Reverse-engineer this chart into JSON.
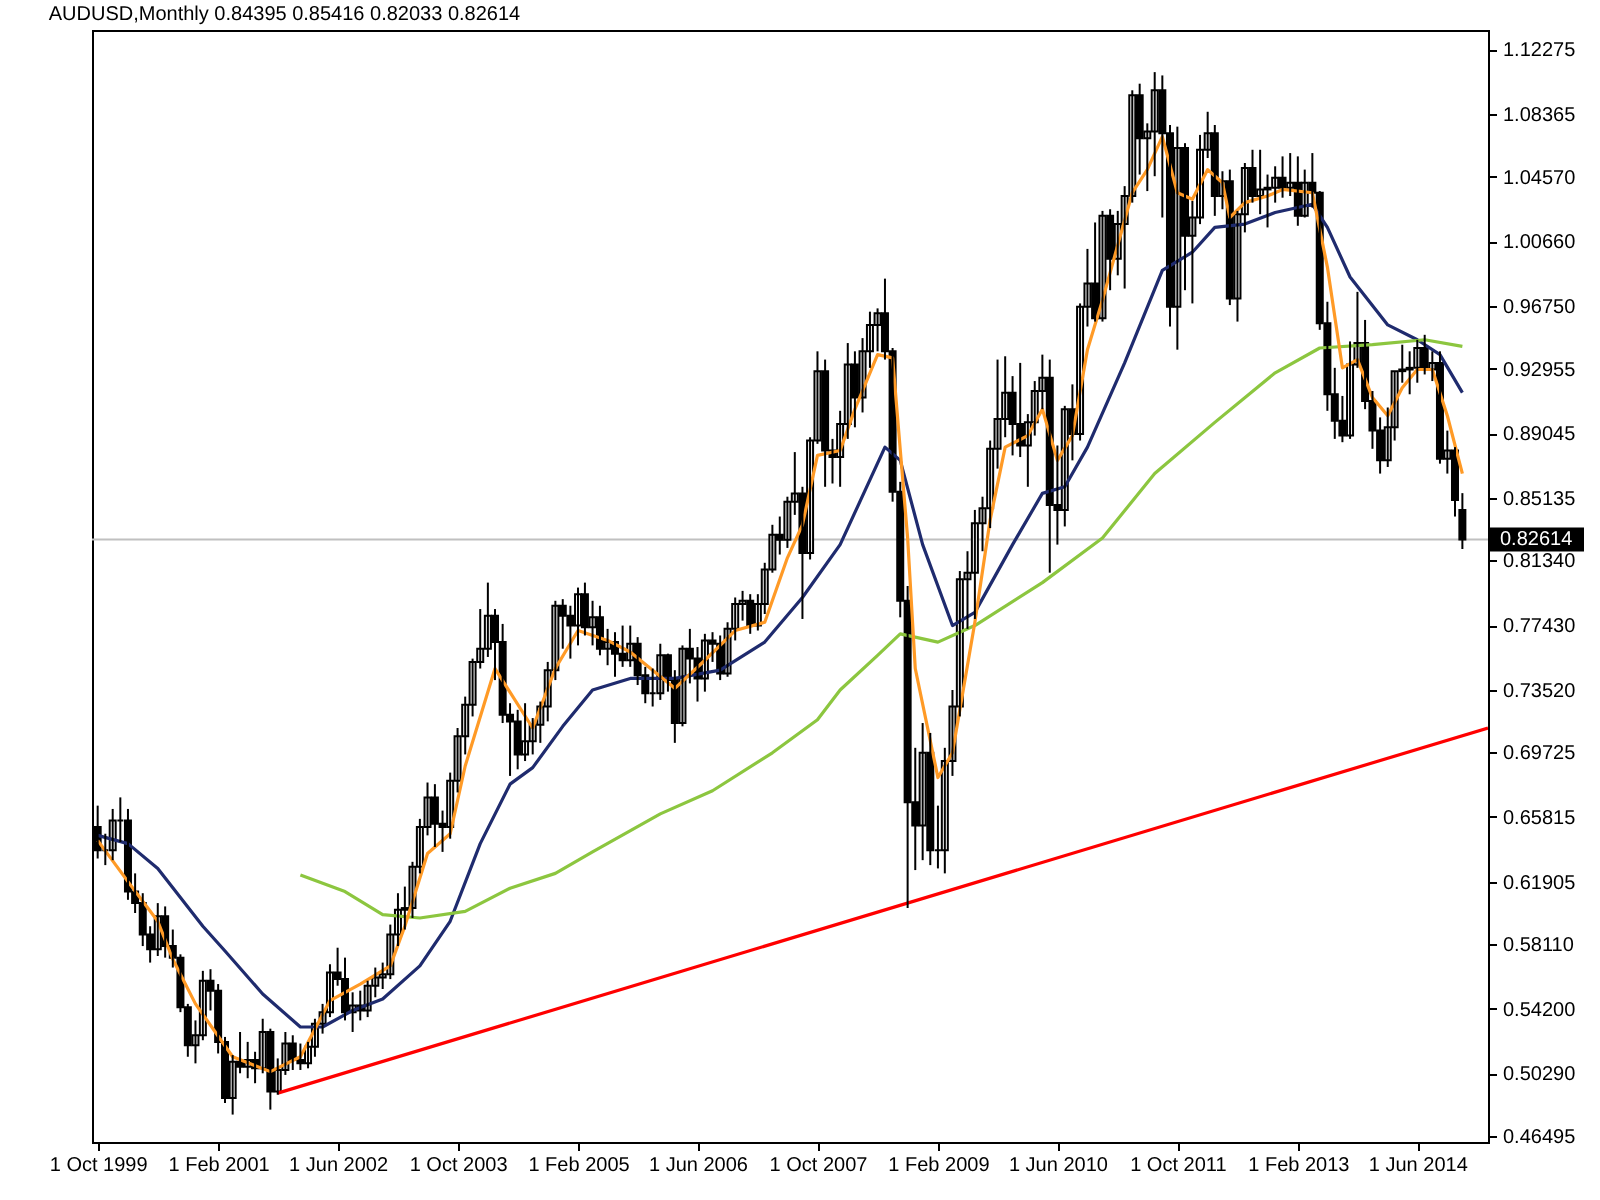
{
  "chart_data": {
    "type": "candlestick",
    "title": "AUDUSD,Monthly  0.84395 0.85416 0.82033 0.82614",
    "x": [
      "1999-10",
      "1999-11",
      "1999-12",
      "2000-01",
      "2000-02",
      "2000-03",
      "2000-04",
      "2000-05",
      "2000-06",
      "2000-07",
      "2000-08",
      "2000-09",
      "2000-10",
      "2000-11",
      "2000-12",
      "2001-01",
      "2001-02",
      "2001-03",
      "2001-04",
      "2001-05",
      "2001-06",
      "2001-07",
      "2001-08",
      "2001-09",
      "2001-10",
      "2001-11",
      "2001-12",
      "2002-01",
      "2002-02",
      "2002-03",
      "2002-04",
      "2002-05",
      "2002-06",
      "2002-07",
      "2002-08",
      "2002-09",
      "2002-10",
      "2002-11",
      "2002-12",
      "2003-01",
      "2003-02",
      "2003-03",
      "2003-04",
      "2003-05",
      "2003-06",
      "2003-07",
      "2003-08",
      "2003-09",
      "2003-10",
      "2003-11",
      "2003-12",
      "2004-01",
      "2004-02",
      "2004-03",
      "2004-04",
      "2004-05",
      "2004-06",
      "2004-07",
      "2004-08",
      "2004-09",
      "2004-10",
      "2004-11",
      "2004-12",
      "2005-01",
      "2005-02",
      "2005-03",
      "2005-04",
      "2005-05",
      "2005-06",
      "2005-07",
      "2005-08",
      "2005-09",
      "2005-10",
      "2005-11",
      "2005-12",
      "2006-01",
      "2006-02",
      "2006-03",
      "2006-04",
      "2006-05",
      "2006-06",
      "2006-07",
      "2006-08",
      "2006-09",
      "2006-10",
      "2006-11",
      "2006-12",
      "2007-01",
      "2007-02",
      "2007-03",
      "2007-04",
      "2007-05",
      "2007-06",
      "2007-07",
      "2007-08",
      "2007-09",
      "2007-10",
      "2007-11",
      "2007-12",
      "2008-01",
      "2008-02",
      "2008-03",
      "2008-04",
      "2008-05",
      "2008-06",
      "2008-07",
      "2008-08",
      "2008-09",
      "2008-10",
      "2008-11",
      "2008-12",
      "2009-01",
      "2009-02",
      "2009-03",
      "2009-04",
      "2009-05",
      "2009-06",
      "2009-07",
      "2009-08",
      "2009-09",
      "2009-10",
      "2009-11",
      "2009-12",
      "2010-01",
      "2010-02",
      "2010-03",
      "2010-04",
      "2010-05",
      "2010-06",
      "2010-07",
      "2010-08",
      "2010-09",
      "2010-10",
      "2010-11",
      "2010-12",
      "2011-01",
      "2011-02",
      "2011-03",
      "2011-04",
      "2011-05",
      "2011-06",
      "2011-07",
      "2011-08",
      "2011-09",
      "2011-10",
      "2011-11",
      "2011-12",
      "2012-01",
      "2012-02",
      "2012-03",
      "2012-04",
      "2012-05",
      "2012-06",
      "2012-07",
      "2012-08",
      "2012-09",
      "2012-10",
      "2012-11",
      "2012-12",
      "2013-01",
      "2013-02",
      "2013-03",
      "2013-04",
      "2013-05",
      "2013-06",
      "2013-07",
      "2013-08",
      "2013-09",
      "2013-10",
      "2013-11",
      "2013-12",
      "2014-01",
      "2014-02",
      "2014-03",
      "2014-04",
      "2014-05",
      "2014-06",
      "2014-07",
      "2014-08",
      "2014-09",
      "2014-10",
      "2014-11",
      "2014-12"
    ],
    "ohlc": [
      [
        0.652,
        0.665,
        0.633,
        0.638
      ],
      [
        0.638,
        0.648,
        0.629,
        0.638
      ],
      [
        0.638,
        0.663,
        0.632,
        0.656
      ],
      [
        0.656,
        0.67,
        0.643,
        0.656
      ],
      [
        0.656,
        0.663,
        0.608,
        0.613
      ],
      [
        0.613,
        0.624,
        0.6,
        0.606
      ],
      [
        0.606,
        0.612,
        0.58,
        0.587
      ],
      [
        0.587,
        0.592,
        0.57,
        0.578
      ],
      [
        0.578,
        0.606,
        0.574,
        0.598
      ],
      [
        0.598,
        0.604,
        0.573,
        0.58
      ],
      [
        0.58,
        0.59,
        0.567,
        0.573
      ],
      [
        0.573,
        0.575,
        0.54,
        0.543
      ],
      [
        0.543,
        0.545,
        0.513,
        0.52
      ],
      [
        0.52,
        0.535,
        0.509,
        0.526
      ],
      [
        0.526,
        0.565,
        0.523,
        0.559
      ],
      [
        0.559,
        0.566,
        0.541,
        0.553
      ],
      [
        0.553,
        0.557,
        0.515,
        0.522
      ],
      [
        0.522,
        0.525,
        0.485,
        0.488
      ],
      [
        0.488,
        0.514,
        0.478,
        0.51
      ],
      [
        0.51,
        0.528,
        0.503,
        0.507
      ],
      [
        0.507,
        0.522,
        0.5,
        0.511
      ],
      [
        0.511,
        0.516,
        0.497,
        0.506
      ],
      [
        0.506,
        0.536,
        0.503,
        0.528
      ],
      [
        0.528,
        0.53,
        0.481,
        0.492
      ],
      [
        0.492,
        0.512,
        0.49,
        0.505
      ],
      [
        0.505,
        0.528,
        0.502,
        0.521
      ],
      [
        0.521,
        0.526,
        0.505,
        0.511
      ],
      [
        0.511,
        0.521,
        0.505,
        0.509
      ],
      [
        0.509,
        0.522,
        0.506,
        0.519
      ],
      [
        0.519,
        0.536,
        0.513,
        0.533
      ],
      [
        0.533,
        0.545,
        0.527,
        0.54
      ],
      [
        0.54,
        0.569,
        0.537,
        0.564
      ],
      [
        0.564,
        0.579,
        0.556,
        0.56
      ],
      [
        0.56,
        0.573,
        0.535,
        0.54
      ],
      [
        0.54,
        0.552,
        0.528,
        0.544
      ],
      [
        0.544,
        0.553,
        0.535,
        0.541
      ],
      [
        0.541,
        0.559,
        0.537,
        0.556
      ],
      [
        0.556,
        0.567,
        0.549,
        0.561
      ],
      [
        0.561,
        0.57,
        0.554,
        0.563
      ],
      [
        0.563,
        0.593,
        0.56,
        0.587
      ],
      [
        0.587,
        0.612,
        0.58,
        0.602
      ],
      [
        0.602,
        0.616,
        0.59,
        0.603
      ],
      [
        0.603,
        0.631,
        0.597,
        0.628
      ],
      [
        0.628,
        0.657,
        0.624,
        0.652
      ],
      [
        0.652,
        0.679,
        0.647,
        0.67
      ],
      [
        0.67,
        0.678,
        0.64,
        0.654
      ],
      [
        0.654,
        0.662,
        0.637,
        0.652
      ],
      [
        0.652,
        0.685,
        0.645,
        0.68
      ],
      [
        0.68,
        0.712,
        0.673,
        0.707
      ],
      [
        0.707,
        0.731,
        0.696,
        0.726
      ],
      [
        0.726,
        0.754,
        0.719,
        0.752
      ],
      [
        0.752,
        0.784,
        0.748,
        0.76
      ],
      [
        0.76,
        0.8,
        0.755,
        0.78
      ],
      [
        0.78,
        0.784,
        0.741,
        0.764
      ],
      [
        0.764,
        0.775,
        0.715,
        0.72
      ],
      [
        0.72,
        0.727,
        0.683,
        0.716
      ],
      [
        0.716,
        0.723,
        0.687,
        0.696
      ],
      [
        0.696,
        0.727,
        0.692,
        0.704
      ],
      [
        0.704,
        0.718,
        0.696,
        0.714
      ],
      [
        0.714,
        0.728,
        0.703,
        0.725
      ],
      [
        0.725,
        0.752,
        0.716,
        0.747
      ],
      [
        0.747,
        0.789,
        0.741,
        0.786
      ],
      [
        0.786,
        0.79,
        0.76,
        0.78
      ],
      [
        0.78,
        0.786,
        0.754,
        0.774
      ],
      [
        0.774,
        0.797,
        0.762,
        0.793
      ],
      [
        0.793,
        0.8,
        0.768,
        0.773
      ],
      [
        0.773,
        0.789,
        0.762,
        0.779
      ],
      [
        0.779,
        0.786,
        0.756,
        0.76
      ],
      [
        0.76,
        0.772,
        0.75,
        0.764
      ],
      [
        0.764,
        0.77,
        0.743,
        0.757
      ],
      [
        0.757,
        0.774,
        0.749,
        0.753
      ],
      [
        0.753,
        0.774,
        0.749,
        0.763
      ],
      [
        0.763,
        0.767,
        0.738,
        0.744
      ],
      [
        0.744,
        0.749,
        0.727,
        0.733
      ],
      [
        0.733,
        0.748,
        0.725,
        0.733
      ],
      [
        0.733,
        0.763,
        0.729,
        0.756
      ],
      [
        0.756,
        0.757,
        0.734,
        0.741
      ],
      [
        0.741,
        0.747,
        0.703,
        0.715
      ],
      [
        0.715,
        0.762,
        0.713,
        0.76
      ],
      [
        0.76,
        0.772,
        0.739,
        0.754
      ],
      [
        0.754,
        0.761,
        0.728,
        0.742
      ],
      [
        0.742,
        0.769,
        0.734,
        0.765
      ],
      [
        0.765,
        0.77,
        0.752,
        0.763
      ],
      [
        0.763,
        0.768,
        0.741,
        0.745
      ],
      [
        0.745,
        0.776,
        0.743,
        0.772
      ],
      [
        0.772,
        0.791,
        0.765,
        0.787
      ],
      [
        0.787,
        0.795,
        0.777,
        0.789
      ],
      [
        0.789,
        0.793,
        0.769,
        0.774
      ],
      [
        0.774,
        0.793,
        0.771,
        0.787
      ],
      [
        0.787,
        0.812,
        0.781,
        0.808
      ],
      [
        0.808,
        0.835,
        0.806,
        0.829
      ],
      [
        0.829,
        0.84,
        0.817,
        0.826
      ],
      [
        0.826,
        0.852,
        0.821,
        0.849
      ],
      [
        0.849,
        0.879,
        0.841,
        0.854
      ],
      [
        0.854,
        0.858,
        0.778,
        0.818
      ],
      [
        0.818,
        0.888,
        0.814,
        0.886
      ],
      [
        0.886,
        0.94,
        0.884,
        0.928
      ],
      [
        0.928,
        0.935,
        0.858,
        0.88
      ],
      [
        0.88,
        0.887,
        0.86,
        0.876
      ],
      [
        0.876,
        0.904,
        0.858,
        0.896
      ],
      [
        0.896,
        0.945,
        0.887,
        0.932
      ],
      [
        0.932,
        0.94,
        0.894,
        0.912
      ],
      [
        0.912,
        0.948,
        0.903,
        0.94
      ],
      [
        0.94,
        0.964,
        0.93,
        0.956
      ],
      [
        0.956,
        0.966,
        0.94,
        0.963
      ],
      [
        0.963,
        0.984,
        0.935,
        0.94
      ],
      [
        0.94,
        0.942,
        0.849,
        0.855
      ],
      [
        0.855,
        0.861,
        0.779,
        0.789
      ],
      [
        0.789,
        0.798,
        0.603,
        0.667
      ],
      [
        0.667,
        0.7,
        0.626,
        0.653
      ],
      [
        0.653,
        0.715,
        0.632,
        0.697
      ],
      [
        0.697,
        0.709,
        0.629,
        0.638
      ],
      [
        0.638,
        0.665,
        0.627,
        0.638
      ],
      [
        0.638,
        0.7,
        0.624,
        0.692
      ],
      [
        0.692,
        0.735,
        0.683,
        0.725
      ],
      [
        0.725,
        0.807,
        0.719,
        0.802
      ],
      [
        0.802,
        0.819,
        0.772,
        0.806
      ],
      [
        0.806,
        0.844,
        0.778,
        0.836
      ],
      [
        0.836,
        0.852,
        0.819,
        0.845
      ],
      [
        0.845,
        0.886,
        0.833,
        0.881
      ],
      [
        0.881,
        0.935,
        0.869,
        0.899
      ],
      [
        0.899,
        0.937,
        0.888,
        0.915
      ],
      [
        0.915,
        0.925,
        0.877,
        0.896
      ],
      [
        0.896,
        0.933,
        0.876,
        0.883
      ],
      [
        0.883,
        0.902,
        0.858,
        0.897
      ],
      [
        0.897,
        0.922,
        0.889,
        0.916
      ],
      [
        0.916,
        0.938,
        0.905,
        0.924
      ],
      [
        0.924,
        0.935,
        0.806,
        0.847
      ],
      [
        0.847,
        0.883,
        0.823,
        0.844
      ],
      [
        0.844,
        0.907,
        0.834,
        0.905
      ],
      [
        0.905,
        0.92,
        0.874,
        0.89
      ],
      [
        0.89,
        0.969,
        0.886,
        0.967
      ],
      [
        0.967,
        1.002,
        0.955,
        0.981
      ],
      [
        0.981,
        1.018,
        0.958,
        0.96
      ],
      [
        0.96,
        1.025,
        0.958,
        1.022
      ],
      [
        1.022,
        1.026,
        0.977,
        0.996
      ],
      [
        0.996,
        1.025,
        0.986,
        1.017
      ],
      [
        1.017,
        1.04,
        0.978,
        1.034
      ],
      [
        1.034,
        1.098,
        1.03,
        1.095
      ],
      [
        1.095,
        1.102,
        1.047,
        1.069
      ],
      [
        1.069,
        1.078,
        1.037,
        1.073
      ],
      [
        1.073,
        1.109,
        1.046,
        1.098
      ],
      [
        1.098,
        1.107,
        1.021,
        1.072
      ],
      [
        1.072,
        1.077,
        0.955,
        0.967
      ],
      [
        0.967,
        1.076,
        0.941,
        1.063
      ],
      [
        1.063,
        1.066,
        0.977,
        1.01
      ],
      [
        1.01,
        1.031,
        0.969,
        1.021
      ],
      [
        1.021,
        1.071,
        1.017,
        1.062
      ],
      [
        1.062,
        1.085,
        1.057,
        1.072
      ],
      [
        1.072,
        1.077,
        1.022,
        1.034
      ],
      [
        1.034,
        1.049,
        1.026,
        1.043
      ],
      [
        1.043,
        1.05,
        0.968,
        0.972
      ],
      [
        0.972,
        1.025,
        0.958,
        1.023
      ],
      [
        1.023,
        1.054,
        1.012,
        1.051
      ],
      [
        1.051,
        1.062,
        1.03,
        1.034
      ],
      [
        1.034,
        1.062,
        1.023,
        1.038
      ],
      [
        1.038,
        1.047,
        1.015,
        1.039
      ],
      [
        1.039,
        1.052,
        1.03,
        1.045
      ],
      [
        1.045,
        1.058,
        1.033,
        1.039
      ],
      [
        1.039,
        1.06,
        1.034,
        1.042
      ],
      [
        1.042,
        1.058,
        1.016,
        1.022
      ],
      [
        1.022,
        1.05,
        1.021,
        1.042
      ],
      [
        1.042,
        1.06,
        1.027,
        1.036
      ],
      [
        1.036,
        1.037,
        0.953,
        0.957
      ],
      [
        0.957,
        0.97,
        0.904,
        0.914
      ],
      [
        0.914,
        0.93,
        0.887,
        0.898
      ],
      [
        0.898,
        0.913,
        0.885,
        0.889
      ],
      [
        0.889,
        0.946,
        0.887,
        0.932
      ],
      [
        0.932,
        0.976,
        0.93,
        0.945
      ],
      [
        0.945,
        0.959,
        0.905,
        0.91
      ],
      [
        0.91,
        0.916,
        0.881,
        0.892
      ],
      [
        0.892,
        0.9,
        0.866,
        0.874
      ],
      [
        0.874,
        0.906,
        0.87,
        0.894
      ],
      [
        0.894,
        0.928,
        0.886,
        0.928
      ],
      [
        0.928,
        0.944,
        0.921,
        0.929
      ],
      [
        0.929,
        0.94,
        0.914,
        0.93
      ],
      [
        0.93,
        0.947,
        0.921,
        0.942
      ],
      [
        0.942,
        0.95,
        0.926,
        0.929
      ],
      [
        0.929,
        0.94,
        0.922,
        0.933
      ],
      [
        0.933,
        0.94,
        0.872,
        0.875
      ],
      [
        0.875,
        0.892,
        0.866,
        0.88
      ],
      [
        0.88,
        0.882,
        0.84,
        0.85
      ],
      [
        0.84395,
        0.85416,
        0.82033,
        0.82614
      ]
    ],
    "series": [
      {
        "type": "line",
        "color": "#1f2b6e",
        "x": [
          "1999-10",
          "2000-02",
          "2000-06",
          "2000-12",
          "2001-03",
          "2001-08",
          "2002-01",
          "2002-04",
          "2002-08",
          "2002-12",
          "2003-05",
          "2003-09",
          "2004-01",
          "2004-05",
          "2004-08",
          "2004-12",
          "2005-04",
          "2005-09",
          "2006-03",
          "2006-09",
          "2007-03",
          "2007-08",
          "2008-01",
          "2008-07",
          "2008-09",
          "2008-12",
          "2009-04",
          "2009-07",
          "2009-12",
          "2010-04",
          "2010-07",
          "2010-10",
          "2011-03",
          "2011-08",
          "2011-12",
          "2012-03",
          "2012-07",
          "2012-11",
          "2013-04",
          "2013-06",
          "2013-09",
          "2014-02",
          "2014-06",
          "2014-09",
          "2014-12"
        ],
        "values": [
          0.647,
          0.642,
          0.627,
          0.592,
          0.577,
          0.551,
          0.531,
          0.531,
          0.541,
          0.548,
          0.568,
          0.595,
          0.642,
          0.678,
          0.688,
          0.713,
          0.735,
          0.742,
          0.742,
          0.747,
          0.764,
          0.791,
          0.823,
          0.882,
          0.874,
          0.823,
          0.774,
          0.782,
          0.823,
          0.854,
          0.858,
          0.882,
          0.933,
          0.989,
          1.0,
          1.015,
          1.017,
          1.024,
          1.029,
          1.015,
          0.985,
          0.956,
          0.947,
          0.938,
          0.915
        ]
      },
      {
        "type": "line",
        "color": "#8cc63f",
        "x": [
          "2002-01",
          "2002-07",
          "2002-12",
          "2003-05",
          "2003-11",
          "2004-05",
          "2004-11",
          "2005-04",
          "2006-01",
          "2006-08",
          "2007-04",
          "2007-10",
          "2008-01",
          "2008-06",
          "2008-09",
          "2009-02",
          "2009-07",
          "2010-04",
          "2010-12",
          "2011-07",
          "2012-03",
          "2012-11",
          "2013-05",
          "2013-12",
          "2014-07",
          "2014-12"
        ],
        "values": [
          0.623,
          0.613,
          0.599,
          0.597,
          0.601,
          0.615,
          0.624,
          0.637,
          0.66,
          0.674,
          0.697,
          0.717,
          0.735,
          0.756,
          0.769,
          0.764,
          0.774,
          0.8,
          0.827,
          0.866,
          0.897,
          0.927,
          0.942,
          0.944,
          0.947,
          0.943
        ]
      },
      {
        "type": "line",
        "color": "#ff9a26",
        "x": [
          "1999-10",
          "2000-02",
          "2000-06",
          "2000-08",
          "2000-11",
          "2001-04",
          "2001-09",
          "2002-01",
          "2002-05",
          "2002-09",
          "2003-01",
          "2003-03",
          "2003-06",
          "2003-09",
          "2003-11",
          "2004-03",
          "2004-08",
          "2004-11",
          "2005-02",
          "2005-06",
          "2005-09",
          "2005-12",
          "2006-03",
          "2006-07",
          "2006-11",
          "2007-03",
          "2007-06",
          "2007-08",
          "2007-10",
          "2008-01",
          "2008-03",
          "2008-06",
          "2008-08",
          "2008-10",
          "2008-11",
          "2009-02",
          "2009-04",
          "2009-07",
          "2009-09",
          "2009-11",
          "2010-02",
          "2010-04",
          "2010-06",
          "2010-08",
          "2010-10",
          "2010-12",
          "2011-04",
          "2011-06",
          "2011-08",
          "2011-10",
          "2011-12",
          "2012-02",
          "2012-04",
          "2012-05",
          "2012-07",
          "2012-10",
          "2012-12",
          "2013-04",
          "2013-06",
          "2013-08",
          "2013-10",
          "2013-12",
          "2014-02",
          "2014-04",
          "2014-06",
          "2014-08",
          "2014-10",
          "2014-12"
        ],
        "values": [
          0.644,
          0.619,
          0.595,
          0.572,
          0.545,
          0.513,
          0.504,
          0.513,
          0.547,
          0.557,
          0.568,
          0.592,
          0.636,
          0.648,
          0.689,
          0.748,
          0.712,
          0.748,
          0.771,
          0.765,
          0.758,
          0.747,
          0.736,
          0.753,
          0.771,
          0.776,
          0.815,
          0.835,
          0.877,
          0.88,
          0.905,
          0.938,
          0.936,
          0.827,
          0.748,
          0.682,
          0.697,
          0.776,
          0.838,
          0.882,
          0.889,
          0.905,
          0.874,
          0.889,
          0.941,
          0.971,
          1.036,
          1.05,
          1.07,
          1.036,
          1.032,
          1.05,
          1.042,
          1.021,
          1.03,
          1.034,
          1.038,
          1.036,
          0.991,
          0.93,
          0.935,
          0.912,
          0.901,
          0.918,
          0.929,
          0.929,
          0.901,
          0.866
        ]
      },
      {
        "type": "line",
        "color": "#ff0000",
        "x": [
          "2001-10",
          "2015-03-15"
        ],
        "values": [
          0.491,
          0.712
        ]
      }
    ],
    "xlim": [
      "1999-09-08",
      "2015-03-15"
    ],
    "xticks": [
      {
        "value": "1999-10-01",
        "label": "1 Oct 1999"
      },
      {
        "value": "2001-02-01",
        "label": "1 Feb 2001"
      },
      {
        "value": "2002-06-01",
        "label": "1 Jun 2002"
      },
      {
        "value": "2003-10-01",
        "label": "1 Oct 2003"
      },
      {
        "value": "2005-02-01",
        "label": "1 Feb 2005"
      },
      {
        "value": "2006-06-01",
        "label": "1 Jun 2006"
      },
      {
        "value": "2007-10-01",
        "label": "1 Oct 2007"
      },
      {
        "value": "2009-02-01",
        "label": "1 Feb 2009"
      },
      {
        "value": "2010-06-01",
        "label": "1 Jun 2010"
      },
      {
        "value": "2011-10-01",
        "label": "1 Oct 2011"
      },
      {
        "value": "2013-02-01",
        "label": "1 Feb 2013"
      },
      {
        "value": "2014-06-01",
        "label": "1 Jun 2014"
      }
    ],
    "ylim": [
      0.4614,
      1.1345
    ],
    "yticks": [
      {
        "value": 0.46495,
        "label": "0.46495"
      },
      {
        "value": 0.5029,
        "label": "0.50290"
      },
      {
        "value": 0.542,
        "label": "0.54200"
      },
      {
        "value": 0.5811,
        "label": "0.58110"
      },
      {
        "value": 0.61905,
        "label": "0.61905"
      },
      {
        "value": 0.65815,
        "label": "0.65815"
      },
      {
        "value": 0.69725,
        "label": "0.69725"
      },
      {
        "value": 0.7352,
        "label": "0.73520"
      },
      {
        "value": 0.7743,
        "label": "0.77430"
      },
      {
        "value": 0.8134,
        "label": "0.81340"
      },
      {
        "value": 0.85135,
        "label": "0.85135"
      },
      {
        "value": 0.89045,
        "label": "0.89045"
      },
      {
        "value": 0.92955,
        "label": "0.92955"
      },
      {
        "value": 0.9675,
        "label": "0.96750"
      },
      {
        "value": 1.0066,
        "label": "1.00660"
      },
      {
        "value": 1.0457,
        "label": "1.04570"
      },
      {
        "value": 1.08365,
        "label": "1.08365"
      },
      {
        "value": 1.12275,
        "label": "1.12275"
      }
    ],
    "ref_lines": [
      {
        "axis": "y",
        "value": 0.82614,
        "label": "0.82614",
        "color": "#c0c0c0"
      }
    ]
  }
}
